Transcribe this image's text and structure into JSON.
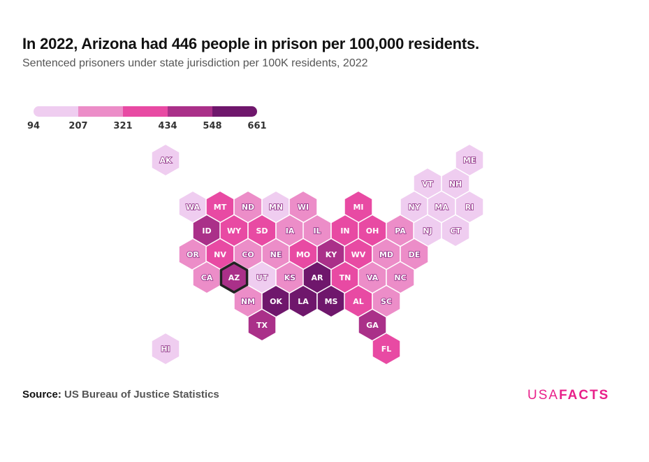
{
  "header": {
    "title": "In 2022, Arizona had 446 people in prison per 100,000 residents.",
    "subtitle": "Sentenced prisoners under state jurisdiction per 100K residents, 2022"
  },
  "footer": {
    "source_label": "Source:",
    "source_text": "US Bureau of Justice Statistics",
    "logo_left": "USA",
    "logo_right": "FACTS"
  },
  "chart_data": {
    "type": "heatmap",
    "subtype": "hex tile map",
    "title": "In 2022, Arizona had 446 people in prison per 100,000 residents.",
    "subtitle": "Sentenced prisoners under state jurisdiction per 100K residents, 2022",
    "legend": {
      "breaks": [
        "94",
        "207",
        "321",
        "434",
        "548",
        "661"
      ],
      "colors": [
        "#efcdf0",
        "#ec8dc8",
        "#e84aa3",
        "#aa3089",
        "#6f176c"
      ],
      "placement": "top-left"
    },
    "highlighted": "AZ",
    "states": [
      {
        "abbr": "AK",
        "bin": 0
      },
      {
        "abbr": "ME",
        "bin": 0
      },
      {
        "abbr": "VT",
        "bin": 0
      },
      {
        "abbr": "NH",
        "bin": 0
      },
      {
        "abbr": "WA",
        "bin": 0
      },
      {
        "abbr": "MT",
        "bin": 2
      },
      {
        "abbr": "ND",
        "bin": 1
      },
      {
        "abbr": "MN",
        "bin": 0
      },
      {
        "abbr": "WI",
        "bin": 1
      },
      {
        "abbr": "MI",
        "bin": 2
      },
      {
        "abbr": "NY",
        "bin": 0
      },
      {
        "abbr": "MA",
        "bin": 0
      },
      {
        "abbr": "RI",
        "bin": 0
      },
      {
        "abbr": "ID",
        "bin": 3
      },
      {
        "abbr": "WY",
        "bin": 2
      },
      {
        "abbr": "SD",
        "bin": 2
      },
      {
        "abbr": "IA",
        "bin": 1
      },
      {
        "abbr": "IL",
        "bin": 1
      },
      {
        "abbr": "IN",
        "bin": 2
      },
      {
        "abbr": "OH",
        "bin": 2
      },
      {
        "abbr": "PA",
        "bin": 1
      },
      {
        "abbr": "NJ",
        "bin": 0
      },
      {
        "abbr": "CT",
        "bin": 0
      },
      {
        "abbr": "OR",
        "bin": 1
      },
      {
        "abbr": "NV",
        "bin": 2
      },
      {
        "abbr": "CO",
        "bin": 1
      },
      {
        "abbr": "NE",
        "bin": 1
      },
      {
        "abbr": "MO",
        "bin": 2
      },
      {
        "abbr": "KY",
        "bin": 3
      },
      {
        "abbr": "WV",
        "bin": 2
      },
      {
        "abbr": "MD",
        "bin": 1
      },
      {
        "abbr": "DE",
        "bin": 1
      },
      {
        "abbr": "CA",
        "bin": 1
      },
      {
        "abbr": "AZ",
        "bin": 3,
        "value": 446
      },
      {
        "abbr": "UT",
        "bin": 0
      },
      {
        "abbr": "KS",
        "bin": 1
      },
      {
        "abbr": "AR",
        "bin": 4
      },
      {
        "abbr": "TN",
        "bin": 2
      },
      {
        "abbr": "VA",
        "bin": 1
      },
      {
        "abbr": "NC",
        "bin": 1
      },
      {
        "abbr": "NM",
        "bin": 1
      },
      {
        "abbr": "OK",
        "bin": 4
      },
      {
        "abbr": "LA",
        "bin": 4
      },
      {
        "abbr": "MS",
        "bin": 4
      },
      {
        "abbr": "AL",
        "bin": 2
      },
      {
        "abbr": "SC",
        "bin": 1
      },
      {
        "abbr": "TX",
        "bin": 3
      },
      {
        "abbr": "GA",
        "bin": 3
      },
      {
        "abbr": "HI",
        "bin": 0
      },
      {
        "abbr": "FL",
        "bin": 2
      }
    ]
  }
}
